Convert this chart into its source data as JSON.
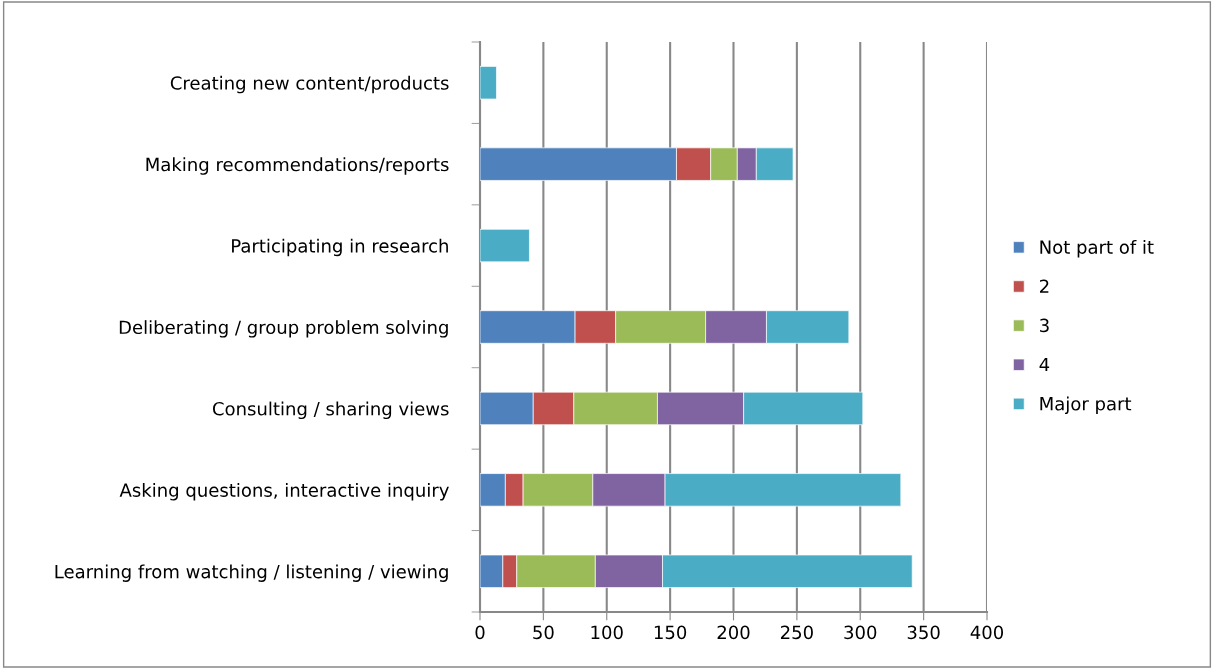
{
  "chart_data": {
    "type": "bar",
    "orientation": "horizontal",
    "stacked": true,
    "categories": [
      "Creating new content/products",
      "Making recommendations/reports",
      "Participating in research",
      "Deliberating / group problem solving",
      "Consulting / sharing views",
      "Asking questions, interactive inquiry",
      "Learning from watching / listening / viewing"
    ],
    "series": [
      {
        "name": "Not part of it",
        "color": "#4f81bd",
        "values": [
          0,
          155,
          0,
          75,
          42,
          20,
          18
        ]
      },
      {
        "name": "2",
        "color": "#c0504d",
        "values": [
          0,
          27,
          0,
          32,
          32,
          14,
          11
        ]
      },
      {
        "name": "3",
        "color": "#9bbb59",
        "values": [
          0,
          21,
          0,
          71,
          66,
          55,
          62
        ]
      },
      {
        "name": "4",
        "color": "#8064a2",
        "values": [
          0,
          15,
          0,
          48,
          68,
          57,
          53
        ]
      },
      {
        "name": "Major part",
        "color": "#4bacc6",
        "values": [
          13,
          29,
          39,
          65,
          94,
          186,
          197
        ]
      }
    ],
    "xlim": [
      0,
      400
    ],
    "xticks": [
      0,
      50,
      100,
      150,
      200,
      250,
      300,
      350,
      400
    ],
    "grid": "x",
    "legend": "right"
  }
}
